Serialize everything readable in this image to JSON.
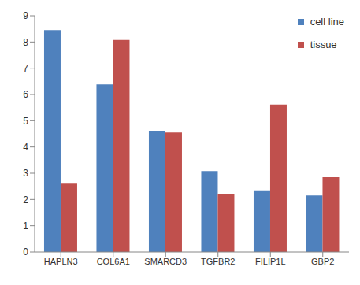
{
  "chart_data": {
    "type": "bar",
    "categories": [
      "HAPLN3",
      "COL6A1",
      "SMARCD3",
      "TGFBR2",
      "FILIP1L",
      "GBP2"
    ],
    "series": [
      {
        "name": "cell line",
        "color": "#4f81bd",
        "values": [
          8.45,
          6.38,
          4.6,
          3.08,
          2.35,
          2.15
        ]
      },
      {
        "name": "tissue",
        "color": "#c0504d",
        "values": [
          2.6,
          8.08,
          4.55,
          2.22,
          5.62,
          2.85
        ]
      }
    ],
    "ylim": [
      0,
      9
    ],
    "yticks": [
      0,
      1,
      2,
      3,
      4,
      5,
      6,
      7,
      8,
      9
    ],
    "grid": false,
    "legend": "top-right"
  }
}
